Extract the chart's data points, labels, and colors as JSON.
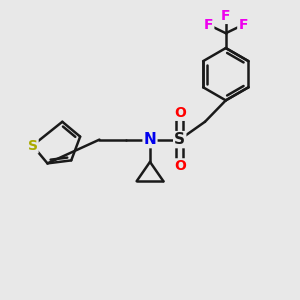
{
  "background_color": "#e8e8e8",
  "bond_color": "#1a1a1a",
  "bond_width": 1.8,
  "atom_colors": {
    "S_thio": "#aaaa00",
    "S_sulfonyl": "#1a1a1a",
    "N": "#0000ee",
    "O": "#ff0000",
    "F": "#ee00ee",
    "C": "#1a1a1a"
  },
  "figsize": [
    3.0,
    3.0
  ],
  "dpi": 100,
  "xlim": [
    0,
    10
  ],
  "ylim": [
    0,
    10
  ]
}
